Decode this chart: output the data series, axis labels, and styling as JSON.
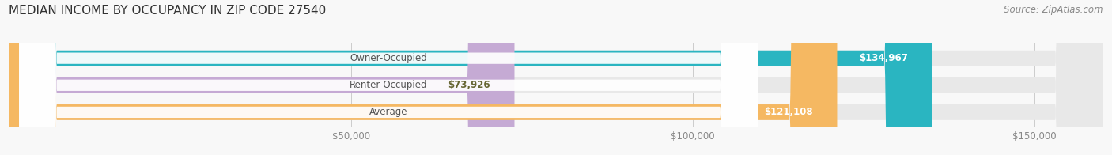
{
  "title": "MEDIAN INCOME BY OCCUPANCY IN ZIP CODE 27540",
  "source": "Source: ZipAtlas.com",
  "categories": [
    "Owner-Occupied",
    "Renter-Occupied",
    "Average"
  ],
  "values": [
    134967,
    73926,
    121108
  ],
  "bar_colors": [
    "#2ab5c1",
    "#c5aad4",
    "#f5b862"
  ],
  "label_colors": [
    "#ffffff",
    "#666633",
    "#ffffff"
  ],
  "value_labels": [
    "$134,967",
    "$73,926",
    "$121,108"
  ],
  "x_max": 160000,
  "x_ticks": [
    50000,
    100000,
    150000
  ],
  "x_tick_labels": [
    "$50,000",
    "$100,000",
    "$150,000"
  ],
  "background_color": "#f8f8f8",
  "bar_bg_color": "#e8e8e8",
  "title_fontsize": 11,
  "source_fontsize": 8.5,
  "label_fontsize": 8.5,
  "value_fontsize": 8.5
}
